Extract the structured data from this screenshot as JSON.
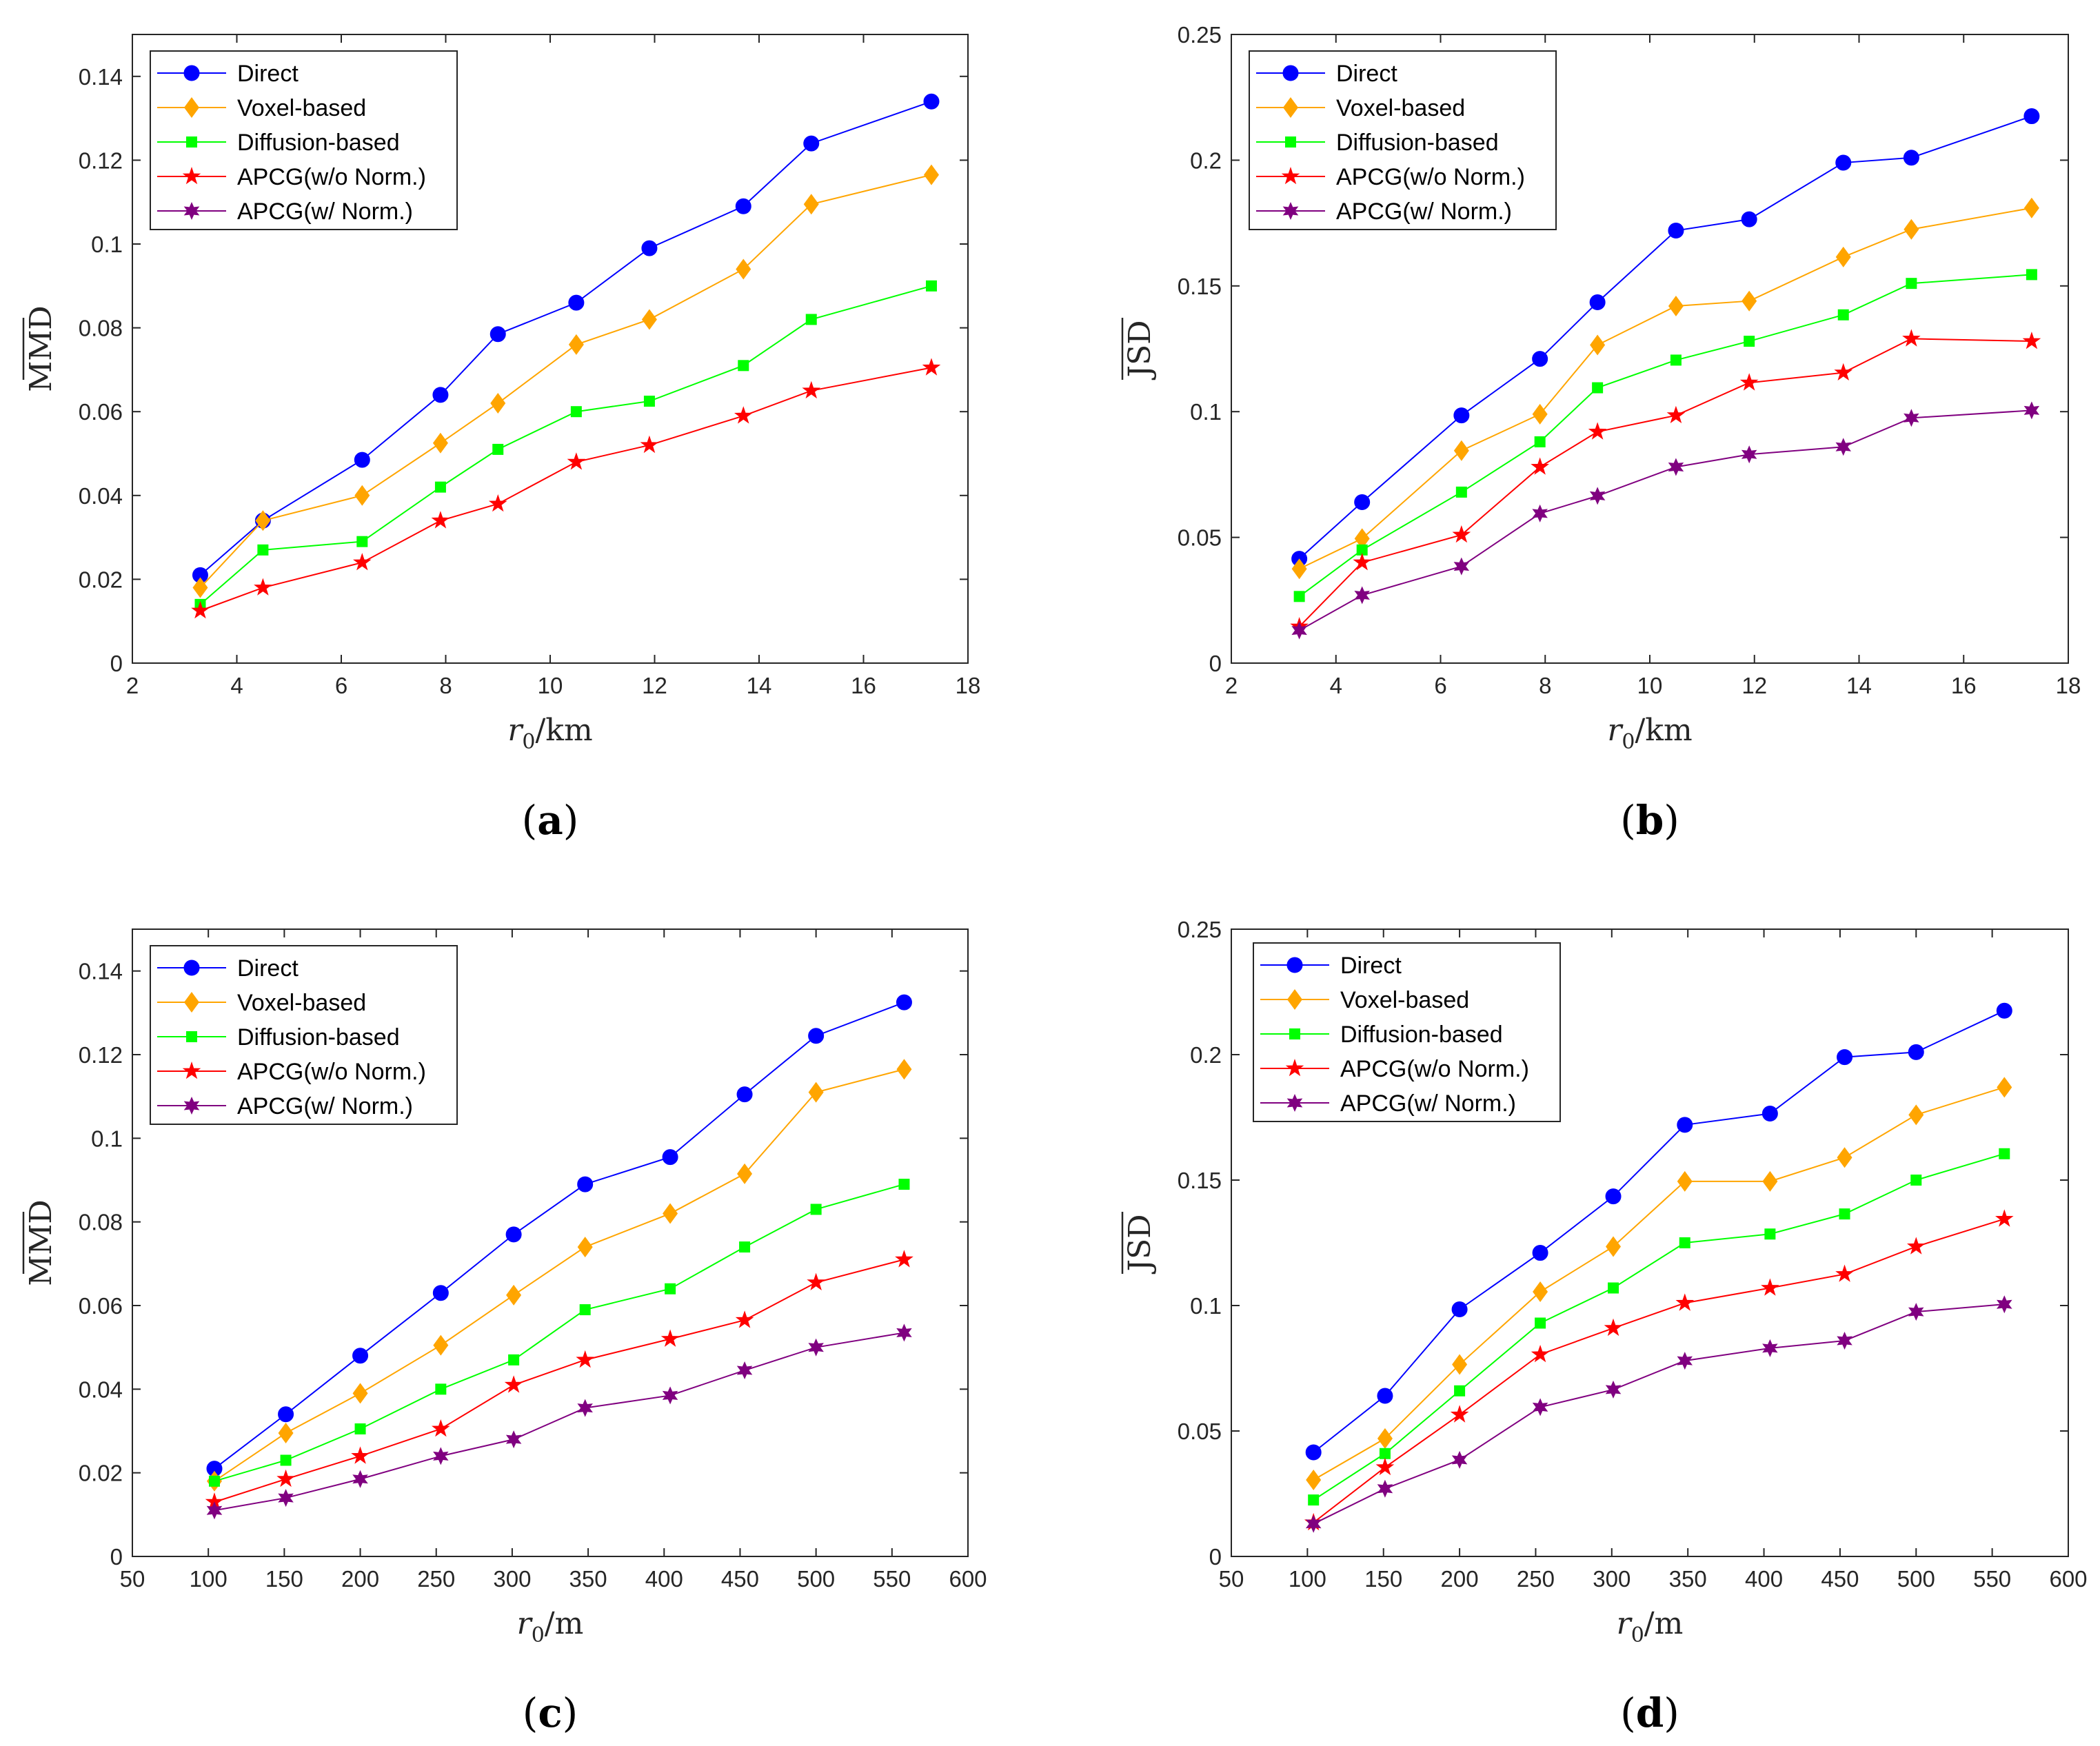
{
  "series_styles": [
    {
      "name": "Direct",
      "color": "#0000ff",
      "marker": "circle"
    },
    {
      "name": "Voxel-based",
      "color": "#ffa500",
      "marker": "diamond"
    },
    {
      "name": "Diffusion-based",
      "color": "#00ff00",
      "marker": "square"
    },
    {
      "name": "APCG(w/o Norm.)",
      "color": "#ff0000",
      "marker": "star5"
    },
    {
      "name": "APCG(w/ Norm.)",
      "color": "#800080",
      "marker": "star6"
    }
  ],
  "chart_data": [
    {
      "type": "line",
      "caption": "(a)",
      "xlabel_var": "r",
      "xlabel_sub": "0",
      "xlabel_unit": "/km",
      "ylabel": "MMD",
      "xlim": [
        2,
        18
      ],
      "ylim": [
        0,
        0.15
      ],
      "xticks": [
        2,
        4,
        6,
        8,
        10,
        12,
        14,
        16,
        18
      ],
      "yticks": [
        0,
        0.02,
        0.04,
        0.06,
        0.08,
        0.1,
        0.12,
        0.14
      ],
      "ytick_labels": [
        "0",
        "0.02",
        "0.04",
        "0.06",
        "0.08",
        "0.1",
        "0.12",
        "0.14"
      ],
      "x": [
        3.3,
        4.5,
        6.4,
        7.9,
        9.0,
        10.5,
        11.9,
        13.7,
        15.0,
        17.3
      ],
      "series": [
        {
          "name": "Direct",
          "values": [
            0.021,
            0.034,
            0.0485,
            0.064,
            0.0785,
            0.086,
            0.099,
            0.109,
            0.124,
            0.134
          ]
        },
        {
          "name": "Voxel-based",
          "values": [
            0.018,
            0.034,
            0.04,
            0.0525,
            0.062,
            0.076,
            0.082,
            0.094,
            0.1095,
            0.1165
          ]
        },
        {
          "name": "Diffusion-based",
          "values": [
            0.014,
            0.027,
            0.029,
            0.042,
            0.051,
            0.06,
            0.0625,
            0.071,
            0.082,
            0.09
          ]
        },
        {
          "name": "APCG(w/o Norm.)",
          "values": [
            0.0125,
            0.018,
            0.024,
            0.034,
            0.038,
            0.048,
            0.052,
            0.059,
            0.065,
            0.0705
          ]
        }
      ]
    },
    {
      "type": "line",
      "caption": "(b)",
      "xlabel_var": "r",
      "xlabel_sub": "0",
      "xlabel_unit": "/km",
      "ylabel": "JSD",
      "xlim": [
        2,
        18
      ],
      "ylim": [
        0,
        0.25
      ],
      "xticks": [
        2,
        4,
        6,
        8,
        10,
        12,
        14,
        16,
        18
      ],
      "yticks": [
        0,
        0.05,
        0.1,
        0.15,
        0.2,
        0.25
      ],
      "ytick_labels": [
        "0",
        "0.05",
        "0.1",
        "0.15",
        "0.2",
        "0.25"
      ],
      "x": [
        3.3,
        4.5,
        6.4,
        7.9,
        9.0,
        10.5,
        11.9,
        13.7,
        15.0,
        17.3
      ],
      "series": [
        {
          "name": "Direct",
          "values": [
            0.0415,
            0.064,
            0.0985,
            0.121,
            0.1435,
            0.172,
            0.1765,
            0.199,
            0.201,
            0.2175
          ]
        },
        {
          "name": "Voxel-based",
          "values": [
            0.0375,
            0.0495,
            0.0845,
            0.099,
            0.1265,
            0.142,
            0.144,
            0.1615,
            0.1725,
            0.181
          ]
        },
        {
          "name": "Diffusion-based",
          "values": [
            0.0265,
            0.045,
            0.068,
            0.088,
            0.1095,
            0.1205,
            0.128,
            0.1385,
            0.151,
            0.1545
          ]
        },
        {
          "name": "APCG(w/o Norm.)",
          "values": [
            0.0145,
            0.04,
            0.051,
            0.078,
            0.092,
            0.0985,
            0.1115,
            0.1155,
            0.129,
            0.128
          ]
        },
        {
          "name": "APCG(w/ Norm.)",
          "values": [
            0.013,
            0.027,
            0.0385,
            0.0595,
            0.0665,
            0.078,
            0.083,
            0.086,
            0.0975,
            0.1005
          ]
        }
      ]
    },
    {
      "type": "line",
      "caption": "(c)",
      "xlabel_var": "r",
      "xlabel_sub": "0",
      "xlabel_unit": "/m",
      "ylabel": "MMD",
      "xlim": [
        50,
        600
      ],
      "ylim": [
        0,
        0.15
      ],
      "xticks": [
        50,
        100,
        150,
        200,
        250,
        300,
        350,
        400,
        450,
        500,
        550,
        600
      ],
      "yticks": [
        0,
        0.02,
        0.04,
        0.06,
        0.08,
        0.1,
        0.12,
        0.14
      ],
      "ytick_labels": [
        "0",
        "0.02",
        "0.04",
        "0.06",
        "0.08",
        "0.1",
        "0.12",
        "0.14"
      ],
      "x": [
        104,
        151,
        200,
        253,
        301,
        348,
        404,
        453,
        500,
        558
      ],
      "series": [
        {
          "name": "Direct",
          "values": [
            0.021,
            0.034,
            0.048,
            0.063,
            0.077,
            0.089,
            0.0955,
            0.1105,
            0.1245,
            0.1325
          ]
        },
        {
          "name": "Voxel-based",
          "values": [
            0.018,
            0.0295,
            0.039,
            0.0505,
            0.0625,
            0.074,
            0.082,
            0.0915,
            0.111,
            0.1165
          ]
        },
        {
          "name": "Diffusion-based",
          "values": [
            0.018,
            0.023,
            0.0305,
            0.04,
            0.047,
            0.059,
            0.064,
            0.074,
            0.083,
            0.089
          ]
        },
        {
          "name": "APCG(w/o Norm.)",
          "values": [
            0.013,
            0.0185,
            0.024,
            0.0305,
            0.041,
            0.047,
            0.052,
            0.0565,
            0.0655,
            0.071
          ]
        },
        {
          "name": "APCG(w/ Norm.)",
          "values": [
            0.011,
            0.014,
            0.0185,
            0.024,
            0.028,
            0.0355,
            0.0385,
            0.0445,
            0.05,
            0.0535
          ]
        }
      ]
    },
    {
      "type": "line",
      "caption": "(d)",
      "xlabel_var": "r",
      "xlabel_sub": "0",
      "xlabel_unit": "/m",
      "ylabel": "JSD",
      "xlim": [
        50,
        600
      ],
      "ylim": [
        0,
        0.25
      ],
      "xticks": [
        50,
        100,
        150,
        200,
        250,
        300,
        350,
        400,
        450,
        500,
        550,
        600
      ],
      "yticks": [
        0,
        0.05,
        0.1,
        0.15,
        0.2,
        0.25
      ],
      "ytick_labels": [
        "0",
        "0.05",
        "0.1",
        "0.15",
        "0.2",
        "0.25"
      ],
      "x": [
        104,
        151,
        200,
        253,
        301,
        348,
        404,
        453,
        500,
        558
      ],
      "series": [
        {
          "name": "Direct",
          "values": [
            0.0415,
            0.064,
            0.0985,
            0.121,
            0.1435,
            0.172,
            0.1765,
            0.199,
            0.201,
            0.2175
          ]
        },
        {
          "name": "Voxel-based",
          "values": [
            0.0305,
            0.047,
            0.0765,
            0.1055,
            0.1235,
            0.1495,
            0.1495,
            0.159,
            0.176,
            0.187
          ]
        },
        {
          "name": "Diffusion-based",
          "values": [
            0.0225,
            0.041,
            0.066,
            0.093,
            0.107,
            0.125,
            0.1285,
            0.1365,
            0.15,
            0.1605
          ]
        },
        {
          "name": "APCG(w/o Norm.)",
          "values": [
            0.0135,
            0.0355,
            0.0565,
            0.0805,
            0.091,
            0.101,
            0.107,
            0.1125,
            0.1235,
            0.1345
          ]
        },
        {
          "name": "APCG(w/ Norm.)",
          "values": [
            0.013,
            0.027,
            0.0385,
            0.0595,
            0.0665,
            0.078,
            0.083,
            0.086,
            0.0975,
            0.1005
          ]
        }
      ]
    }
  ]
}
